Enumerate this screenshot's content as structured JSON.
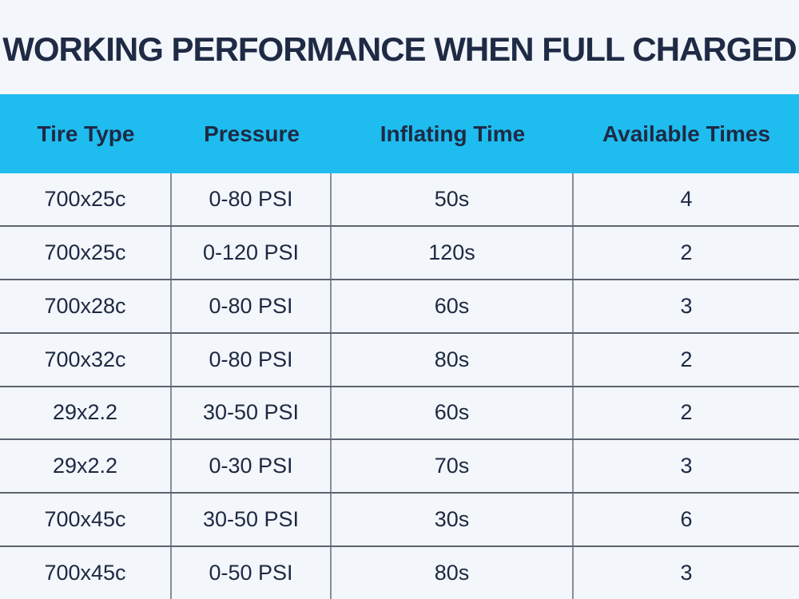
{
  "title": "WORKING PERFORMANCE WHEN FULL CHARGED",
  "colors": {
    "page_bg": "#F3F6FA",
    "header_bg": "#1FBCEF",
    "title_text": "#1F2B45",
    "header_text": "#1E2A44",
    "cell_text": "#1D2942",
    "row_border": "#5C6470",
    "column_border": "#878E99"
  },
  "table": {
    "columns": [
      "Tire Type",
      "Pressure",
      "Inflating Time",
      "Available Times"
    ],
    "rows": [
      [
        "700x25c",
        "0-80 PSI",
        "50s",
        "4"
      ],
      [
        "700x25c",
        "0-120 PSI",
        "120s",
        "2"
      ],
      [
        "700x28c",
        "0-80 PSI",
        "60s",
        "3"
      ],
      [
        "700x32c",
        "0-80 PSI",
        "80s",
        "2"
      ],
      [
        "29x2.2",
        "30-50 PSI",
        "60s",
        "2"
      ],
      [
        "29x2.2",
        "0-30 PSI",
        "70s",
        "3"
      ],
      [
        "700x45c",
        "30-50 PSI",
        "30s",
        "6"
      ],
      [
        "700x45c",
        "0-50 PSI",
        "80s",
        "3"
      ]
    ]
  },
  "chart_data": {
    "type": "table",
    "title": "WORKING PERFORMANCE WHEN FULL CHARGED",
    "columns": [
      "Tire Type",
      "Pressure",
      "Inflating Time",
      "Available Times"
    ],
    "rows": [
      [
        "700x25c",
        "0-80 PSI",
        "50s",
        "4"
      ],
      [
        "700x25c",
        "0-120 PSI",
        "120s",
        "2"
      ],
      [
        "700x28c",
        "0-80 PSI",
        "60s",
        "3"
      ],
      [
        "700x32c",
        "0-80 PSI",
        "80s",
        "2"
      ],
      [
        "29x2.2",
        "30-50 PSI",
        "60s",
        "2"
      ],
      [
        "29x2.2",
        "0-30 PSI",
        "70s",
        "3"
      ],
      [
        "700x45c",
        "30-50 PSI",
        "30s",
        "6"
      ],
      [
        "700x45c",
        "0-50 PSI",
        "80s",
        "3"
      ]
    ]
  }
}
